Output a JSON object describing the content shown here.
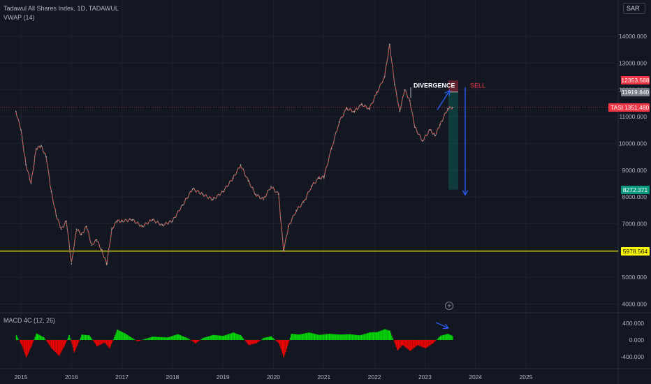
{
  "legend": {
    "line1": "Tadawul All Shares Index, 1D, TADAWUL",
    "line2": "VWAP (14)",
    "macd": "MACD 4C (12, 26)"
  },
  "currency": "SAR",
  "chart_data": [
    {
      "type": "line",
      "title": "Tadawul All Shares Index, 1D, TADAWUL",
      "ylim": [
        3700,
        15200
      ],
      "y_ticks": [
        4000,
        5000,
        6000,
        7000,
        8000,
        9000,
        10000,
        11000,
        12000,
        13000,
        14000
      ],
      "y_tick_labels": [
        "4000.000",
        "5000.000",
        "6000.000",
        "7000.000",
        "8000.000",
        "9000.000",
        "10000.000",
        "11000.000",
        "12000.000",
        "13000.000",
        "14000.000"
      ],
      "x_tick_labels": [
        "2015",
        "2016",
        "2017",
        "2018",
        "2019",
        "2020",
        "2021",
        "2022",
        "2023",
        "2024",
        "2025"
      ],
      "series": [
        {
          "name": "TASI",
          "x": [
            2014.9,
            2015.0,
            2015.1,
            2015.2,
            2015.3,
            2015.4,
            2015.5,
            2015.6,
            2015.7,
            2015.8,
            2015.9,
            2016.0,
            2016.1,
            2016.2,
            2016.3,
            2016.4,
            2016.5,
            2016.6,
            2016.7,
            2016.8,
            2016.9,
            2017.0,
            2017.2,
            2017.4,
            2017.6,
            2017.8,
            2018.0,
            2018.2,
            2018.4,
            2018.6,
            2018.8,
            2019.0,
            2019.2,
            2019.35,
            2019.5,
            2019.65,
            2019.8,
            2019.95,
            2020.1,
            2020.2,
            2020.3,
            2020.45,
            2020.6,
            2020.75,
            2020.9,
            2021.0,
            2021.15,
            2021.3,
            2021.45,
            2021.6,
            2021.75,
            2021.9,
            2022.05,
            2022.2,
            2022.3,
            2022.4,
            2022.5,
            2022.6,
            2022.7,
            2022.8,
            2022.95,
            2023.1,
            2023.2,
            2023.3,
            2023.45,
            2023.55
          ],
          "values": [
            11200,
            10500,
            9200,
            8500,
            9800,
            9900,
            9500,
            8200,
            7300,
            6800,
            7100,
            5500,
            6800,
            6600,
            6900,
            6200,
            6400,
            6000,
            5500,
            6800,
            7100,
            7100,
            7150,
            6900,
            7150,
            6950,
            7100,
            7700,
            8300,
            8100,
            7900,
            8200,
            8700,
            9200,
            8600,
            8100,
            7900,
            8400,
            8100,
            6000,
            6900,
            7500,
            7800,
            8400,
            8700,
            8750,
            9800,
            10800,
            11300,
            11200,
            11450,
            11300,
            11900,
            12500,
            13700,
            12200,
            11200,
            12000,
            11600,
            10600,
            10100,
            10500,
            10300,
            10700,
            11300,
            11351.48
          ]
        }
      ],
      "annotations": [
        "DIVERGENCE",
        "SELL"
      ],
      "horizontal_lines": [
        {
          "value": 5978.564,
          "label": "5978.564",
          "color": "#ffff00"
        },
        {
          "value": 11351.48,
          "label": "11351.480",
          "color": "#f23645"
        }
      ],
      "price_labels": [
        {
          "value": 12353.588,
          "label": "12353.588",
          "color": "#f23645"
        },
        {
          "value": 11919.84,
          "label": "11919.840",
          "color": "#787b86"
        },
        {
          "value": 8272.371,
          "label": "8272.371",
          "color": "#089981"
        }
      ],
      "ticker_tag": "TASI",
      "position": {
        "type": "short",
        "entry": 11919.84,
        "stop": 12353.588,
        "target": 8272.371
      }
    },
    {
      "type": "bar",
      "title": "MACD 4C (12, 26)",
      "ylim": [
        -500,
        520
      ],
      "y_ticks": [
        400,
        0,
        -400
      ],
      "y_tick_labels": [
        "400.000",
        "0.000",
        "-400.000"
      ],
      "colors": {
        "positive": "#00e600",
        "negative": "#ff0000"
      },
      "x": [
        2014.9,
        2015.0,
        2015.1,
        2015.2,
        2015.3,
        2015.45,
        2015.6,
        2015.75,
        2015.85,
        2015.95,
        2016.05,
        2016.2,
        2016.35,
        2016.5,
        2016.65,
        2016.75,
        2016.9,
        2017.05,
        2017.3,
        2017.6,
        2017.9,
        2018.1,
        2018.3,
        2018.45,
        2018.6,
        2018.8,
        2019.0,
        2019.2,
        2019.35,
        2019.5,
        2019.65,
        2019.8,
        2019.95,
        2020.1,
        2020.2,
        2020.35,
        2020.5,
        2020.7,
        2020.9,
        2021.1,
        2021.3,
        2021.5,
        2021.7,
        2021.9,
        2022.05,
        2022.2,
        2022.3,
        2022.45,
        2022.55,
        2022.7,
        2022.85,
        2023.0,
        2023.15,
        2023.3,
        2023.45,
        2023.55
      ],
      "values": [
        120,
        -100,
        -420,
        -150,
        160,
        60,
        -200,
        -380,
        -150,
        120,
        -300,
        130,
        110,
        -150,
        -60,
        -200,
        250,
        160,
        -30,
        80,
        60,
        140,
        40,
        -80,
        50,
        120,
        100,
        180,
        110,
        -120,
        -80,
        50,
        90,
        -80,
        -420,
        150,
        130,
        180,
        120,
        150,
        130,
        140,
        110,
        180,
        190,
        260,
        220,
        -250,
        -120,
        -260,
        -120,
        -200,
        -80,
        100,
        150,
        90
      ]
    }
  ]
}
